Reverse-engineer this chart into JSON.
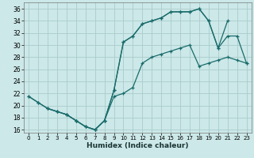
{
  "xlabel": "Humidex (Indice chaleur)",
  "bg_color": "#cce8e8",
  "grid_color": "#aacccc",
  "line_color": "#1a6b6b",
  "xlim": [
    -0.5,
    23.5
  ],
  "ylim": [
    15.5,
    37.0
  ],
  "xticks": [
    0,
    1,
    2,
    3,
    4,
    5,
    6,
    7,
    8,
    9,
    10,
    11,
    12,
    13,
    14,
    15,
    16,
    17,
    18,
    19,
    20,
    21,
    22,
    23
  ],
  "yticks": [
    16,
    18,
    20,
    22,
    24,
    26,
    28,
    30,
    32,
    34,
    36
  ],
  "curve1_x": [
    0,
    1,
    2,
    3,
    4,
    5,
    6,
    7,
    8,
    9,
    10,
    11,
    12,
    13,
    14,
    15,
    16,
    17,
    18,
    19,
    20,
    21
  ],
  "curve1_y": [
    21.5,
    20.5,
    19.5,
    19.0,
    18.5,
    17.5,
    16.5,
    16.0,
    17.5,
    22.5,
    30.5,
    31.5,
    33.5,
    34.0,
    34.5,
    35.5,
    35.5,
    35.5,
    36.0,
    34.0,
    29.5,
    34.0
  ],
  "curve2_x": [
    0,
    1,
    2,
    3,
    4,
    5,
    6,
    7,
    8,
    9,
    10,
    11,
    12,
    13,
    14,
    15,
    16,
    17,
    18,
    19,
    20,
    21,
    22,
    23
  ],
  "curve2_y": [
    21.5,
    20.5,
    19.5,
    19.0,
    18.5,
    17.5,
    16.5,
    16.0,
    17.5,
    21.5,
    22.0,
    23.0,
    27.0,
    28.0,
    28.5,
    29.0,
    29.5,
    30.0,
    26.5,
    27.0,
    27.5,
    28.0,
    27.5,
    27.0
  ],
  "curve3_x": [
    2,
    3,
    4,
    5,
    6,
    7,
    8,
    9,
    10,
    11,
    12,
    13,
    14,
    15,
    16,
    17,
    18,
    19,
    20,
    21,
    22,
    23
  ],
  "curve3_y": [
    19.5,
    19.0,
    18.5,
    17.5,
    16.5,
    16.0,
    17.5,
    22.5,
    30.5,
    31.5,
    33.5,
    34.0,
    34.5,
    35.5,
    35.5,
    35.5,
    36.0,
    34.0,
    29.5,
    31.5,
    31.5,
    27.0
  ]
}
